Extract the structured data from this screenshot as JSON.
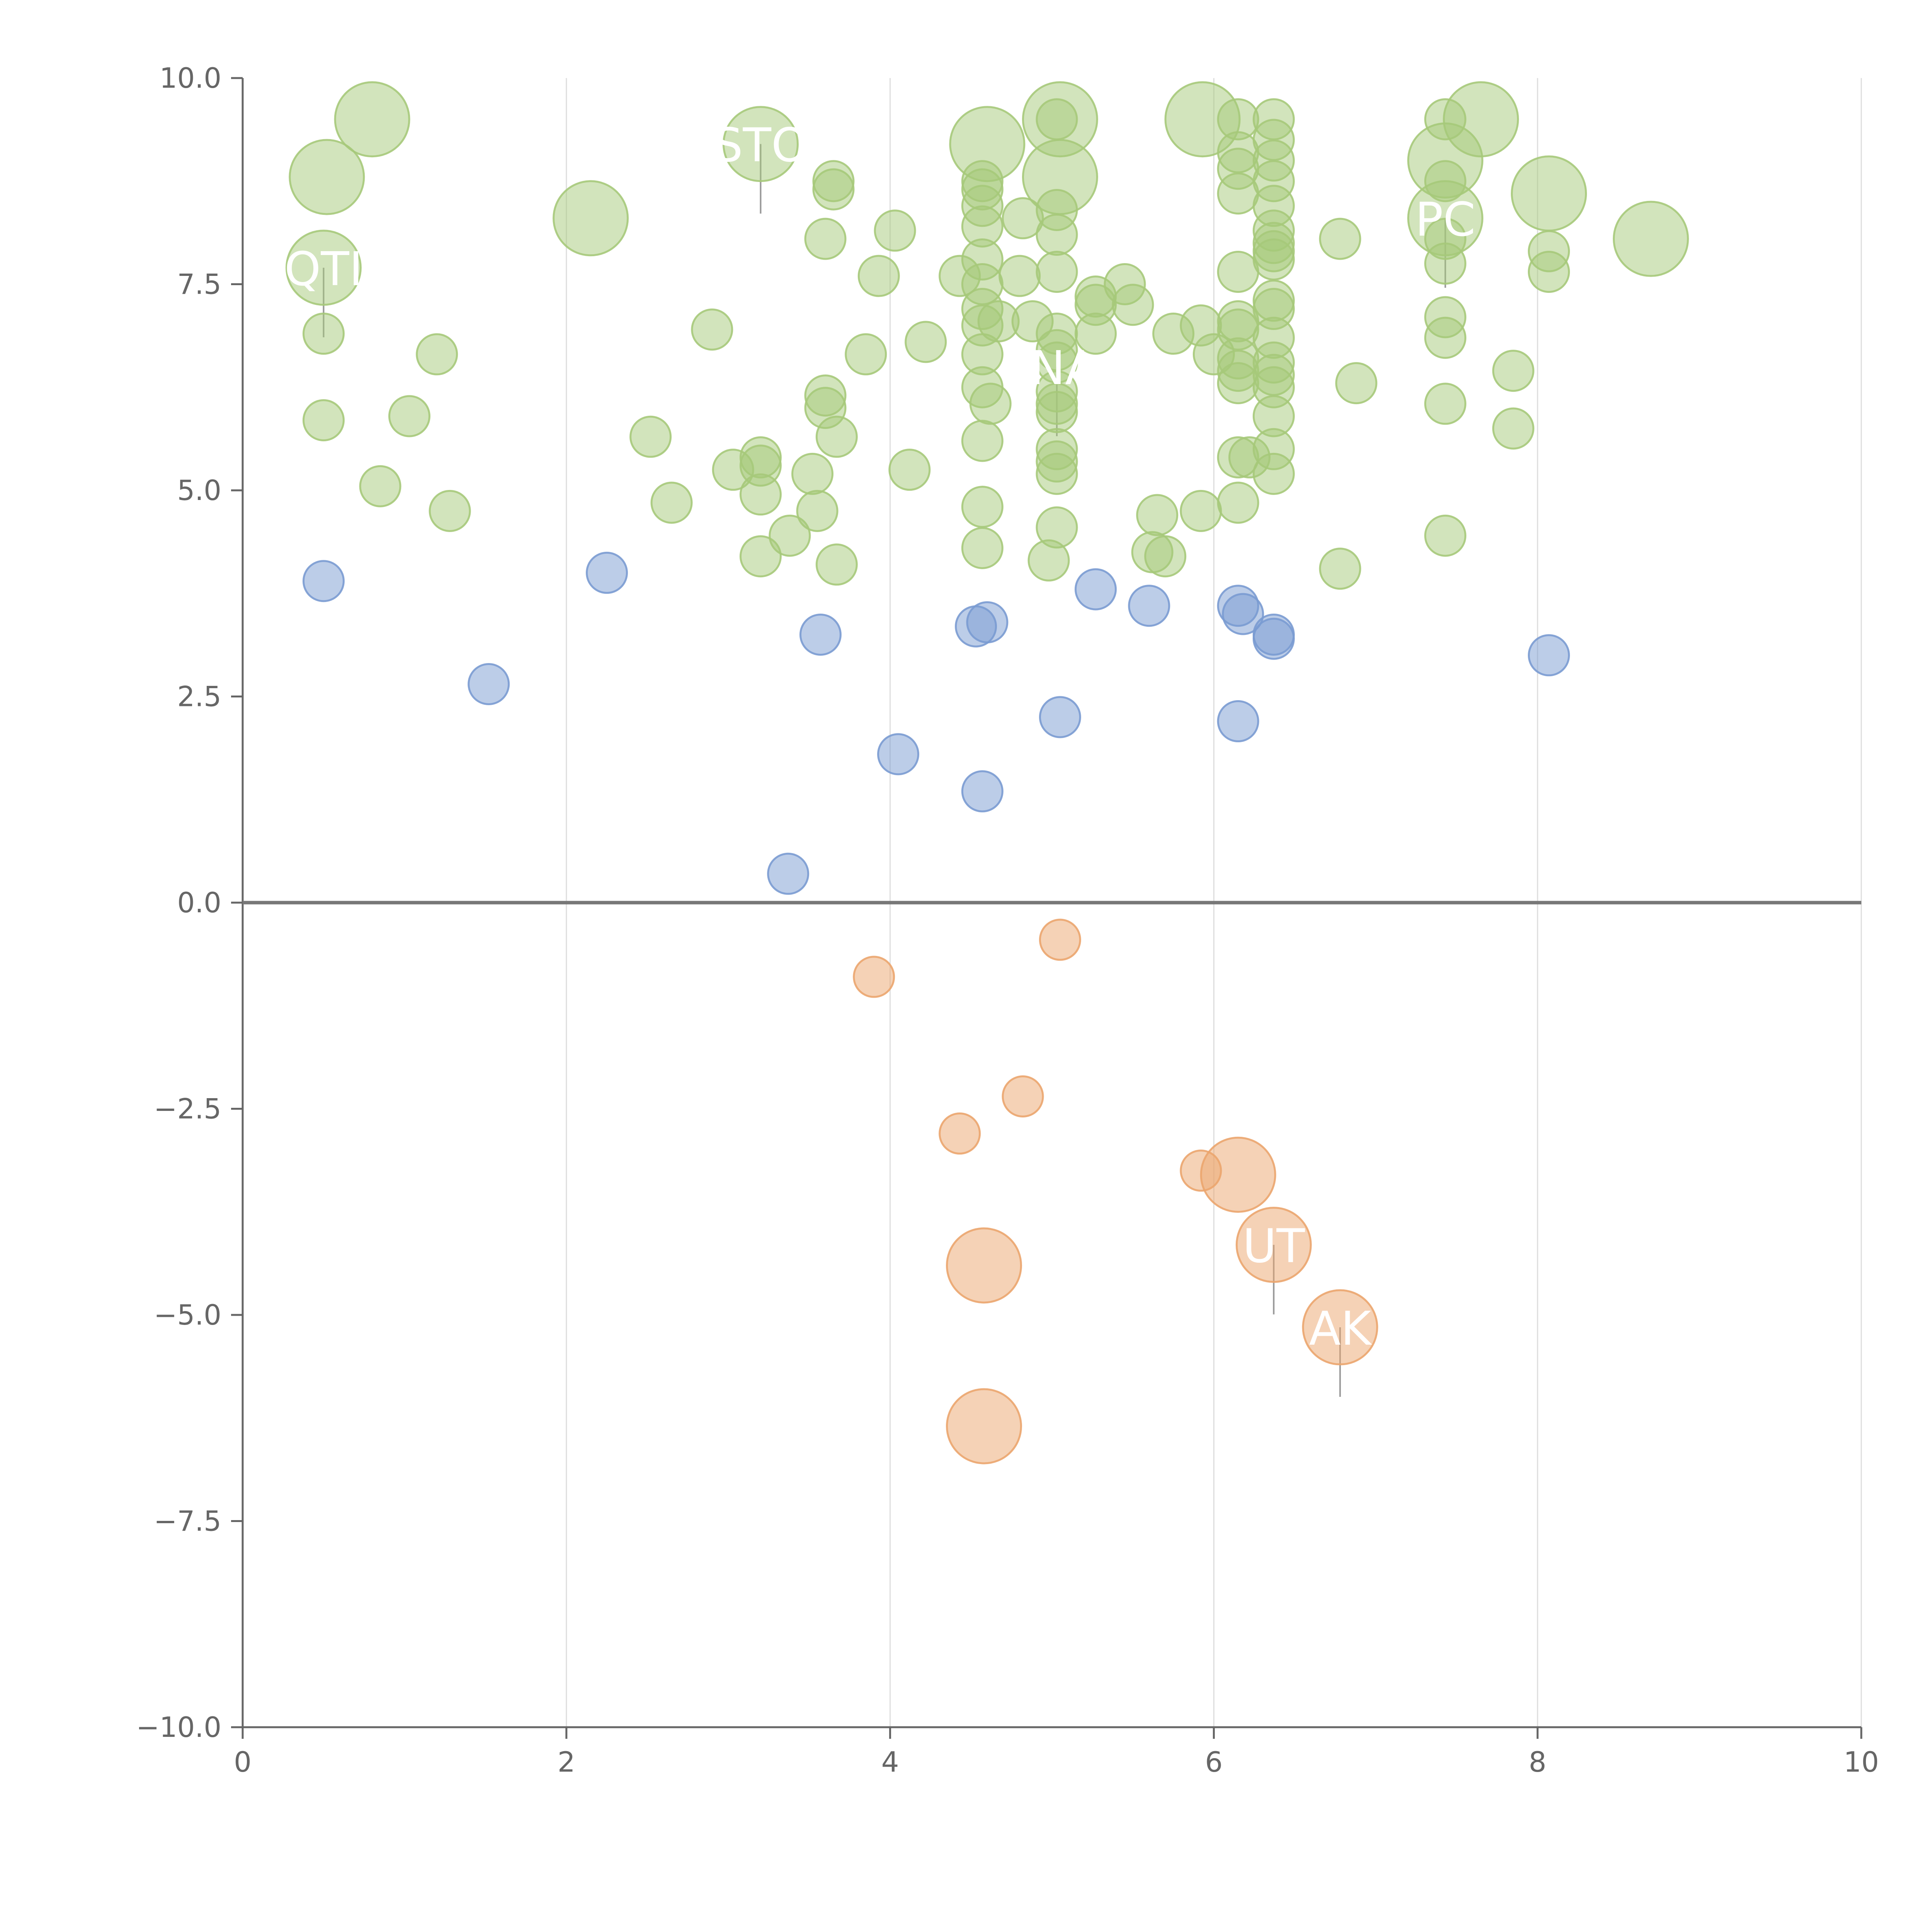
{
  "chart_data": {
    "type": "scatter",
    "title": "",
    "xlabel": "",
    "ylabel": "",
    "xlim": [
      0,
      10
    ],
    "ylim": [
      -10,
      10
    ],
    "grid": "vertical",
    "zero_line": true,
    "x_ticks": [
      "0",
      "2",
      "4",
      "6",
      "8",
      "10"
    ],
    "y_ticks": [
      "−10.0",
      "−7.5",
      "−5.0",
      "−2.5",
      "0.0",
      "2.5",
      "5.0",
      "7.5",
      "10.0"
    ],
    "colors": {
      "green": "#a6c97a",
      "blue": "#7a9bd1",
      "orange": "#eba56e",
      "grid": "#dddddd",
      "axis": "#666666",
      "zero": "#777777",
      "leader": "#999999"
    },
    "series": [
      {
        "name": "green",
        "color": "#a6c97a",
        "points": [
          [
            0.5,
            7.7,
            3
          ],
          [
            0.52,
            8.8,
            3
          ],
          [
            0.8,
            9.5,
            3
          ],
          [
            2.15,
            8.3,
            3
          ],
          [
            3.2,
            9.2,
            3
          ],
          [
            4.6,
            9.2,
            3
          ],
          [
            5.05,
            9.5,
            3
          ],
          [
            5.05,
            8.8,
            3
          ],
          [
            5.93,
            9.5,
            3
          ],
          [
            7.43,
            9.0,
            3
          ],
          [
            7.65,
            9.5,
            3
          ],
          [
            7.43,
            8.3,
            3
          ],
          [
            8.07,
            8.6,
            3
          ],
          [
            8.7,
            8.05,
            3
          ],
          [
            0.5,
            6.9,
            1
          ],
          [
            0.5,
            5.85,
            1
          ],
          [
            0.85,
            5.05,
            1
          ],
          [
            1.03,
            5.9,
            1
          ],
          [
            1.2,
            6.65,
            1
          ],
          [
            1.28,
            4.75,
            1
          ],
          [
            2.52,
            5.65,
            1
          ],
          [
            2.65,
            4.85,
            1
          ],
          [
            2.9,
            6.95,
            1
          ],
          [
            3.03,
            5.25,
            1
          ],
          [
            3.2,
            5.4,
            1
          ],
          [
            3.2,
            5.3,
            1
          ],
          [
            3.2,
            4.95,
            1
          ],
          [
            3.2,
            4.2,
            1
          ],
          [
            3.38,
            4.45,
            1
          ],
          [
            3.52,
            5.2,
            1
          ],
          [
            3.55,
            4.75,
            1
          ],
          [
            3.6,
            6.0,
            1
          ],
          [
            3.6,
            6.15,
            1
          ],
          [
            3.6,
            8.05,
            1
          ],
          [
            3.65,
            8.65,
            1
          ],
          [
            3.65,
            8.75,
            1
          ],
          [
            3.67,
            5.65,
            1
          ],
          [
            3.67,
            4.1,
            1
          ],
          [
            3.85,
            6.65,
            1
          ],
          [
            3.93,
            7.6,
            1
          ],
          [
            4.03,
            8.15,
            1
          ],
          [
            4.12,
            5.25,
            1
          ],
          [
            4.22,
            6.8,
            1
          ],
          [
            4.43,
            7.6,
            1
          ],
          [
            4.57,
            8.2,
            1
          ],
          [
            4.57,
            8.45,
            1
          ],
          [
            4.57,
            8.65,
            1
          ],
          [
            4.57,
            8.75,
            1
          ],
          [
            4.57,
            7.8,
            1
          ],
          [
            4.57,
            7.5,
            1
          ],
          [
            4.57,
            7.2,
            1
          ],
          [
            4.57,
            7.0,
            1
          ],
          [
            4.57,
            6.65,
            1
          ],
          [
            4.57,
            6.25,
            1
          ],
          [
            4.57,
            5.6,
            1
          ],
          [
            4.57,
            4.8,
            1
          ],
          [
            4.57,
            4.3,
            1
          ],
          [
            4.62,
            6.05,
            1
          ],
          [
            4.67,
            7.05,
            1
          ],
          [
            4.8,
            7.6,
            1
          ],
          [
            4.82,
            8.3,
            1
          ],
          [
            4.88,
            7.05,
            1
          ],
          [
            5.03,
            9.5,
            1
          ],
          [
            5.03,
            8.4,
            1
          ],
          [
            5.03,
            8.1,
            1
          ],
          [
            5.03,
            7.65,
            1
          ],
          [
            5.03,
            6.9,
            1
          ],
          [
            5.03,
            6.7,
            1
          ],
          [
            5.03,
            6.55,
            1
          ],
          [
            5.03,
            6.2,
            1
          ],
          [
            5.03,
            6.05,
            1
          ],
          [
            5.03,
            5.95,
            1
          ],
          [
            5.03,
            5.5,
            1
          ],
          [
            5.03,
            5.35,
            1
          ],
          [
            5.03,
            5.2,
            1
          ],
          [
            5.03,
            4.55,
            1
          ],
          [
            4.98,
            4.15,
            1
          ],
          [
            5.27,
            7.35,
            1
          ],
          [
            5.27,
            7.25,
            1
          ],
          [
            5.27,
            6.9,
            1
          ],
          [
            5.45,
            7.5,
            1
          ],
          [
            5.5,
            7.25,
            1
          ],
          [
            5.62,
            4.25,
            1
          ],
          [
            5.65,
            4.7,
            1
          ],
          [
            5.7,
            4.2,
            1
          ],
          [
            5.75,
            6.9,
            1
          ],
          [
            5.92,
            7.0,
            1
          ],
          [
            5.92,
            4.75,
            1
          ],
          [
            6.0,
            6.65,
            1
          ],
          [
            6.15,
            9.5,
            1
          ],
          [
            6.15,
            9.1,
            1
          ],
          [
            6.15,
            8.9,
            1
          ],
          [
            6.15,
            8.6,
            1
          ],
          [
            6.15,
            7.65,
            1
          ],
          [
            6.15,
            7.05,
            1
          ],
          [
            6.15,
            6.95,
            1
          ],
          [
            6.15,
            6.6,
            1
          ],
          [
            6.15,
            6.45,
            1
          ],
          [
            6.15,
            6.3,
            1
          ],
          [
            6.15,
            5.4,
            1
          ],
          [
            6.15,
            4.85,
            1
          ],
          [
            6.22,
            5.4,
            1
          ],
          [
            6.37,
            9.5,
            1
          ],
          [
            6.37,
            9.25,
            1
          ],
          [
            6.37,
            9.0,
            1
          ],
          [
            6.37,
            8.75,
            1
          ],
          [
            6.37,
            8.45,
            1
          ],
          [
            6.37,
            8.15,
            1
          ],
          [
            6.37,
            8.0,
            1
          ],
          [
            6.37,
            7.9,
            1
          ],
          [
            6.37,
            7.8,
            1
          ],
          [
            6.37,
            7.3,
            1
          ],
          [
            6.37,
            7.2,
            1
          ],
          [
            6.37,
            6.85,
            1
          ],
          [
            6.37,
            6.55,
            1
          ],
          [
            6.37,
            6.4,
            1
          ],
          [
            6.37,
            6.25,
            1
          ],
          [
            6.37,
            5.9,
            1
          ],
          [
            6.37,
            5.5,
            1
          ],
          [
            6.37,
            5.2,
            1
          ],
          [
            6.78,
            8.05,
            1
          ],
          [
            6.78,
            4.05,
            1
          ],
          [
            6.88,
            6.3,
            1
          ],
          [
            7.43,
            9.5,
            1
          ],
          [
            7.43,
            8.75,
            1
          ],
          [
            7.43,
            8.05,
            1
          ],
          [
            7.43,
            7.75,
            1
          ],
          [
            7.43,
            7.1,
            1
          ],
          [
            7.43,
            6.85,
            1
          ],
          [
            7.43,
            6.05,
            1
          ],
          [
            7.43,
            4.45,
            1
          ],
          [
            7.85,
            6.45,
            1
          ],
          [
            7.85,
            5.75,
            1
          ],
          [
            8.07,
            7.9,
            1
          ],
          [
            8.07,
            7.65,
            1
          ]
        ]
      },
      {
        "name": "blue",
        "color": "#7a9bd1",
        "points": [
          [
            0.5,
            3.9,
            1
          ],
          [
            1.52,
            2.65,
            1
          ],
          [
            2.25,
            4.0,
            1
          ],
          [
            3.37,
            0.35,
            1
          ],
          [
            3.57,
            3.25,
            1
          ],
          [
            4.05,
            1.8,
            1
          ],
          [
            4.53,
            3.35,
            1
          ],
          [
            4.6,
            3.4,
            1
          ],
          [
            4.57,
            1.35,
            1
          ],
          [
            5.05,
            2.25,
            1
          ],
          [
            5.27,
            3.8,
            1
          ],
          [
            5.6,
            3.6,
            1
          ],
          [
            6.15,
            3.6,
            1
          ],
          [
            6.18,
            3.5,
            1
          ],
          [
            6.37,
            3.25,
            1
          ],
          [
            6.37,
            3.2,
            1
          ],
          [
            6.15,
            2.2,
            1
          ],
          [
            8.07,
            3.0,
            1
          ]
        ]
      },
      {
        "name": "orange",
        "color": "#eba56e",
        "points": [
          [
            3.9,
            -0.9,
            1
          ],
          [
            5.05,
            -0.45,
            1
          ],
          [
            4.82,
            -2.35,
            1
          ],
          [
            4.43,
            -2.8,
            1
          ],
          [
            5.92,
            -3.25,
            1
          ],
          [
            6.15,
            -3.3,
            3
          ],
          [
            6.37,
            -4.15,
            3
          ],
          [
            4.58,
            -4.4,
            3
          ],
          [
            6.78,
            -5.15,
            3
          ],
          [
            4.58,
            -6.35,
            3
          ]
        ]
      }
    ],
    "annotations": [
      {
        "text": "QTI",
        "x": 0.5,
        "y": 7.7
      },
      {
        "text": "STO",
        "x": 3.2,
        "y": 9.2
      },
      {
        "text": "INA",
        "x": 5.03,
        "y": 6.5
      },
      {
        "text": "PC",
        "x": 7.43,
        "y": 8.3
      },
      {
        "text": "UT",
        "x": 6.37,
        "y": -4.15
      },
      {
        "text": "AK",
        "x": 6.78,
        "y": -5.15
      }
    ]
  }
}
